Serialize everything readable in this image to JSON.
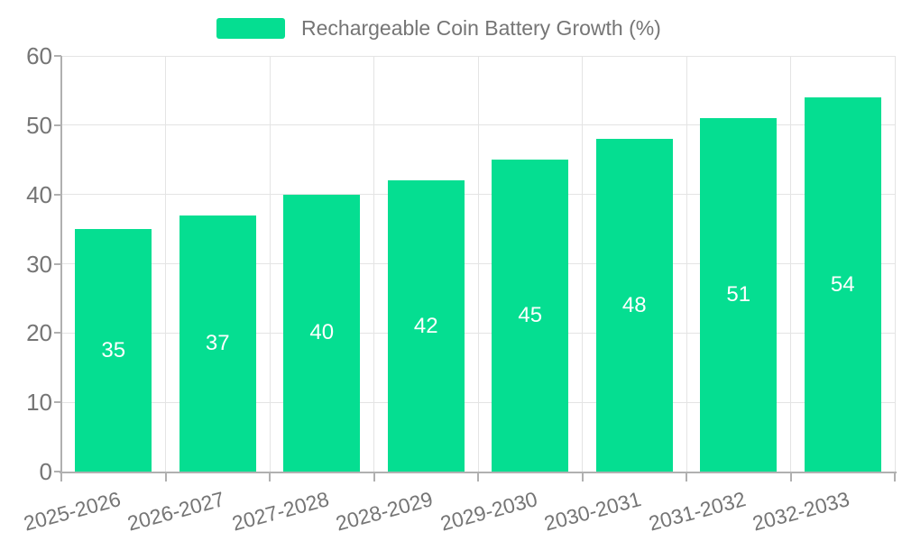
{
  "legend": {
    "label": "Rechargeable Coin Battery Growth (%)"
  },
  "colors": {
    "bar": "#05DE91",
    "bar_value_text": "#ffffff",
    "axis_line": "#b0b0b0",
    "grid_line": "#e4e4e4",
    "tick_text": "#757575",
    "legend_text": "#757575"
  },
  "chart_data": {
    "type": "bar",
    "title": "Rechargeable Coin Battery Growth (%)",
    "categories": [
      "2025-2026",
      "2026-2027",
      "2027-2028",
      "2028-2029",
      "2029-2030",
      "2030-2031",
      "2031-2032",
      "2032-2033"
    ],
    "values": [
      35,
      37,
      40,
      42,
      45,
      48,
      51,
      54
    ],
    "series_name": "Rechargeable Coin Battery Growth (%)",
    "xlabel": "",
    "ylabel": "",
    "ylim": [
      0,
      60
    ],
    "yticks": [
      0,
      10,
      20,
      30,
      40,
      50,
      60
    ],
    "grid": true,
    "legend_position": "top-center",
    "value_label_position": "inside-center",
    "x_label_rotation_deg": -15
  }
}
